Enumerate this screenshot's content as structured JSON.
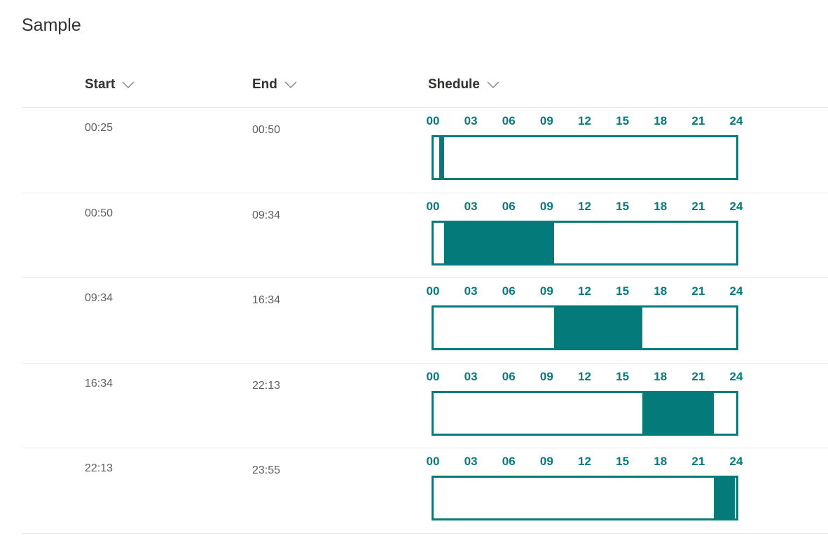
{
  "title": "Sample",
  "columns": {
    "start": "Start",
    "end": "End",
    "schedule": "Shedule"
  },
  "tick_labels": [
    "00",
    "03",
    "06",
    "09",
    "12",
    "15",
    "18",
    "21",
    "24"
  ],
  "accent_color": "#047a7a",
  "rows": [
    {
      "start": "00:25",
      "end": "00:50",
      "start_min": 25,
      "end_min": 50
    },
    {
      "start": "00:50",
      "end": "09:34",
      "start_min": 50,
      "end_min": 574
    },
    {
      "start": "09:34",
      "end": "16:34",
      "start_min": 574,
      "end_min": 994
    },
    {
      "start": "16:34",
      "end": "22:13",
      "start_min": 994,
      "end_min": 1333
    },
    {
      "start": "22:13",
      "end": "23:55",
      "start_min": 1333,
      "end_min": 1435
    }
  ]
}
